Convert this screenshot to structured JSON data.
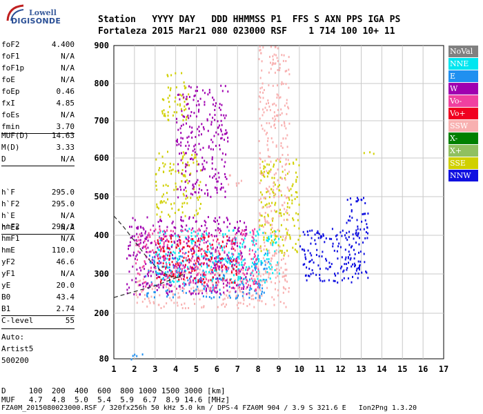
{
  "logo": {
    "line1": "Lowell",
    "line2": "DIGISONDE"
  },
  "header": {
    "line1": "Station   YYYY DAY   DDD HHMMSS P1  FFS S AXN PPS IGA PS",
    "line2": "Fortaleza 2015 Mar21 080 023000 RSF    1 714 100 10+ 11"
  },
  "params": {
    "group1": [
      {
        "k": "foF2",
        "v": "4.400"
      },
      {
        "k": "foF1",
        "v": "N/A"
      },
      {
        "k": "foF1p",
        "v": "N/A"
      },
      {
        "k": "foE",
        "v": "N/A"
      },
      {
        "k": "foEp",
        "v": "0.46"
      },
      {
        "k": "fxI",
        "v": "4.85"
      },
      {
        "k": "foEs",
        "v": "N/A"
      },
      {
        "k": "fmin",
        "v": "3.70"
      }
    ],
    "group2": [
      {
        "k": "MUF(D)",
        "v": "14.63"
      },
      {
        "k": "M(D)",
        "v": "3.33"
      },
      {
        "k": "D",
        "v": "N/A"
      }
    ],
    "group3": [
      {
        "k": "h`F",
        "v": "295.0"
      },
      {
        "k": "h`F2",
        "v": "295.0"
      },
      {
        "k": "h`E",
        "v": "N/A"
      },
      {
        "k": "h`Es",
        "v": "N/A"
      }
    ],
    "group4": [
      {
        "k": "hmF2",
        "v": "299.3"
      },
      {
        "k": "hmF1",
        "v": "N/A"
      },
      {
        "k": "hmE",
        "v": "110.0"
      },
      {
        "k": "yF2",
        "v": "46.6"
      },
      {
        "k": "yF1",
        "v": "N/A"
      },
      {
        "k": "yE",
        "v": "20.0"
      },
      {
        "k": "B0",
        "v": "43.4"
      },
      {
        "k": "B1",
        "v": "2.74"
      }
    ],
    "group5": [
      {
        "k": "C-level",
        "v": "55"
      }
    ]
  },
  "auto": {
    "l1": "Auto:",
    "l2": "Artist5",
    "l3": "500200"
  },
  "legend": [
    {
      "label": "NoVal",
      "color": "#808080"
    },
    {
      "label": "NNE",
      "color": "#00e6f0"
    },
    {
      "label": "E",
      "color": "#2090f0"
    },
    {
      "label": "W",
      "color": "#a000b0"
    },
    {
      "label": "Vo-",
      "color": "#f040a0"
    },
    {
      "label": "Vo+",
      "color": "#f00020"
    },
    {
      "label": "SSW",
      "color": "#f8b0b0"
    },
    {
      "label": "X-",
      "color": "#008000"
    },
    {
      "label": "X+",
      "color": "#90c060"
    },
    {
      "label": "SSE",
      "color": "#d0d000"
    },
    {
      "label": "NNW",
      "color": "#1010e0"
    }
  ],
  "footer": {
    "d_line": "D     100  200  400  600  800 1000 1500 3000 [km]",
    "muf_line": "MUF   4.7  4.8  5.0  5.4  5.9  6.7  8.9 14.6 [MHz]",
    "file_line": "FZA0M_2015080023000.RSF / 320fx256h 50 kHz 5.0 km / DPS-4 FZA0M 904 / 3.9 S 321.6 E   Ion2Png 1.3.20"
  },
  "chart_data": {
    "type": "scatter",
    "title": "",
    "xlabel": "",
    "ylabel": "",
    "xlim": [
      1,
      17
    ],
    "ylim": [
      80,
      900
    ],
    "x_ticks": [
      1,
      2,
      3,
      4,
      5,
      6,
      7,
      8,
      9,
      10,
      11,
      12,
      13,
      14,
      15,
      16,
      17
    ],
    "y_ticks": [
      80,
      200,
      300,
      400,
      500,
      600,
      700,
      800,
      900
    ],
    "grid": true,
    "legend_position": "right",
    "clusters": [
      {
        "series": "SSW",
        "x": [
          2.0,
          9.5
        ],
        "y": [
          215,
          320
        ]
      },
      {
        "series": "E",
        "x": [
          2.5,
          8.5
        ],
        "y": [
          240,
          360
        ]
      },
      {
        "series": "NNE",
        "x": [
          3.0,
          9.0
        ],
        "y": [
          280,
          420
        ]
      },
      {
        "series": "W",
        "x": [
          1.6,
          7.5
        ],
        "y": [
          250,
          450
        ]
      },
      {
        "series": "Vo-",
        "x": [
          2.0,
          8.0
        ],
        "y": [
          260,
          420
        ]
      },
      {
        "series": "Vo+",
        "x": [
          3.0,
          7.0
        ],
        "y": [
          280,
          400
        ]
      },
      {
        "series": "NNW",
        "x": [
          10.0,
          13.0
        ],
        "y": [
          280,
          420
        ]
      },
      {
        "series": "NNW",
        "x": [
          12.2,
          13.3
        ],
        "y": [
          280,
          500
        ]
      },
      {
        "series": "SSE",
        "x": [
          8.0,
          10.0
        ],
        "y": [
          350,
          600
        ]
      },
      {
        "series": "SSE",
        "x": [
          3.0,
          5.2
        ],
        "y": [
          450,
          620
        ]
      },
      {
        "series": "SSE",
        "x": [
          3.3,
          4.6
        ],
        "y": [
          700,
          830
        ]
      },
      {
        "series": "W",
        "x": [
          4.0,
          6.5
        ],
        "y": [
          500,
          800
        ]
      },
      {
        "series": "SSW",
        "x": [
          8.0,
          9.5
        ],
        "y": [
          280,
          900
        ]
      },
      {
        "series": "SSE",
        "x": [
          13.0,
          13.6
        ],
        "y": [
          605,
          620
        ]
      },
      {
        "series": "SSW",
        "x": [
          6.5,
          7.2
        ],
        "y": [
          530,
          560
        ]
      },
      {
        "series": "E",
        "x": [
          1.5,
          2.5
        ],
        "y": [
          80,
          95
        ]
      }
    ],
    "virtual_height_curve": {
      "x": [
        1,
        1.5,
        2,
        2.5,
        3,
        3.5,
        4,
        4.4
      ],
      "y": [
        450,
        420,
        385,
        350,
        320,
        300,
        290,
        295
      ]
    },
    "true_height_curve": {
      "x": [
        1,
        2,
        3,
        4,
        4.4
      ],
      "y": [
        240,
        255,
        270,
        290,
        300
      ]
    }
  }
}
